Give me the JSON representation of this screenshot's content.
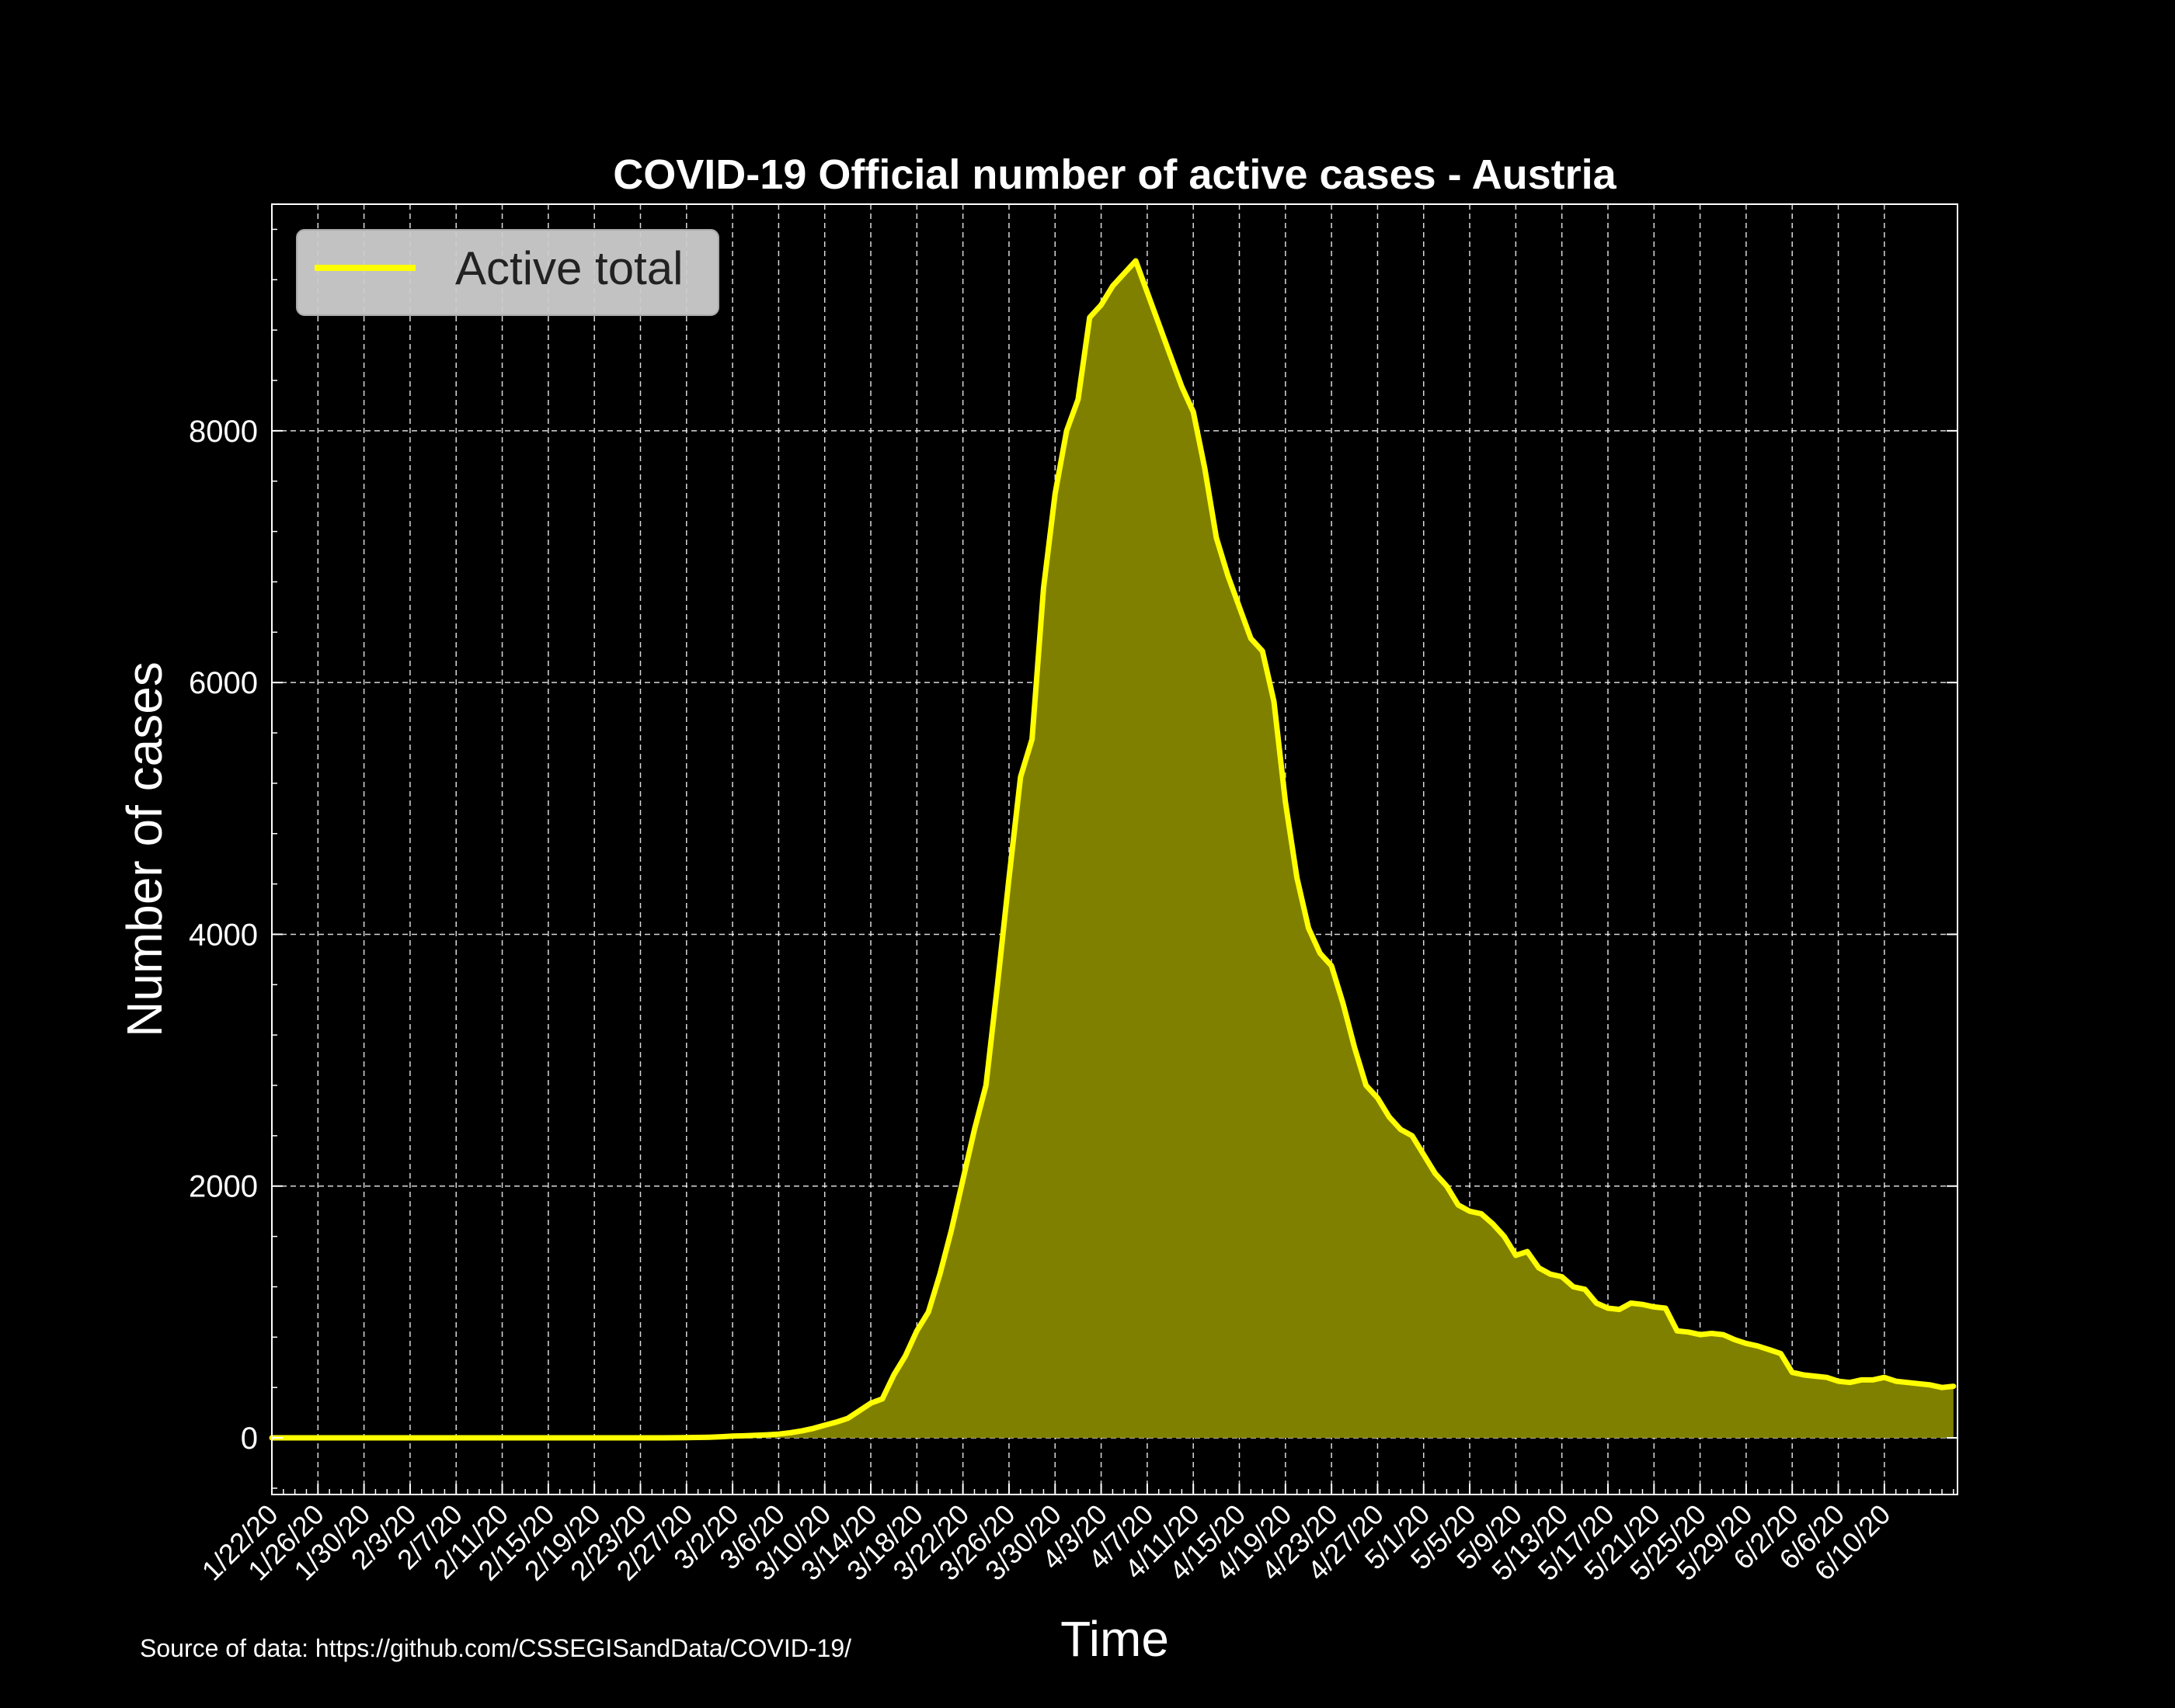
{
  "chart_data": {
    "type": "area",
    "title": "COVID-19 Official number of active cases - Austria",
    "xlabel": "Time",
    "ylabel": "Number of cases",
    "source": "Source of data: https://github.com/CSSEGISandData/COVID-19/",
    "legend": {
      "label": "Active total",
      "position": "top-left"
    },
    "colors": {
      "line": "#ffff00",
      "fill": "#808000",
      "background": "#000000",
      "grid": "#ffffff"
    },
    "grid": true,
    "xlim": [
      "1/22/20",
      "6/11/20"
    ],
    "ylim": [
      -450,
      9800
    ],
    "yticks": [
      0,
      2000,
      4000,
      6000,
      8000
    ],
    "xtick_labels": [
      "1/22/20",
      "1/26/20",
      "1/30/20",
      "2/3/20",
      "2/7/20",
      "2/11/20",
      "2/15/20",
      "2/19/20",
      "2/23/20",
      "2/27/20",
      "3/2/20",
      "3/6/20",
      "3/10/20",
      "3/14/20",
      "3/18/20",
      "3/22/20",
      "3/26/20",
      "3/30/20",
      "4/3/20",
      "4/7/20",
      "4/11/20",
      "4/15/20",
      "4/19/20",
      "4/23/20",
      "4/27/20",
      "5/1/20",
      "5/5/20",
      "5/9/20",
      "5/13/20",
      "5/17/20",
      "5/21/20",
      "5/25/20",
      "5/29/20",
      "6/2/20",
      "6/6/20",
      "6/10/20"
    ],
    "start_date": "1/22/20",
    "values": [
      0,
      0,
      0,
      0,
      0,
      0,
      0,
      0,
      0,
      0,
      0,
      0,
      0,
      0,
      0,
      0,
      0,
      0,
      0,
      0,
      0,
      0,
      0,
      0,
      0,
      0,
      0,
      0,
      0,
      0,
      0,
      0,
      0,
      0,
      0,
      1,
      2,
      3,
      5,
      9,
      14,
      16,
      20,
      24,
      30,
      40,
      55,
      75,
      100,
      125,
      155,
      215,
      275,
      310,
      500,
      650,
      850,
      1000,
      1300,
      1650,
      2050,
      2450,
      2800,
      3600,
      4450,
      5250,
      5550,
      6750,
      7500,
      8000,
      8250,
      8900,
      9000,
      9150,
      9250,
      9350,
      9100,
      8850,
      8600,
      8350,
      8150,
      7700,
      7150,
      6850,
      6600,
      6350,
      6250,
      5850,
      5050,
      4450,
      4050,
      3850,
      3750,
      3450,
      3100,
      2800,
      2700,
      2550,
      2450,
      2400,
      2250,
      2100,
      2000,
      1850,
      1800,
      1780,
      1700,
      1600,
      1450,
      1480,
      1350,
      1300,
      1280,
      1200,
      1180,
      1070,
      1030,
      1020,
      1070,
      1060,
      1040,
      1030,
      850,
      840,
      820,
      830,
      820,
      780,
      750,
      730,
      700,
      670,
      520,
      500,
      490,
      480,
      450,
      440,
      460,
      460,
      480,
      450,
      440,
      430,
      420,
      400,
      410
    ]
  }
}
